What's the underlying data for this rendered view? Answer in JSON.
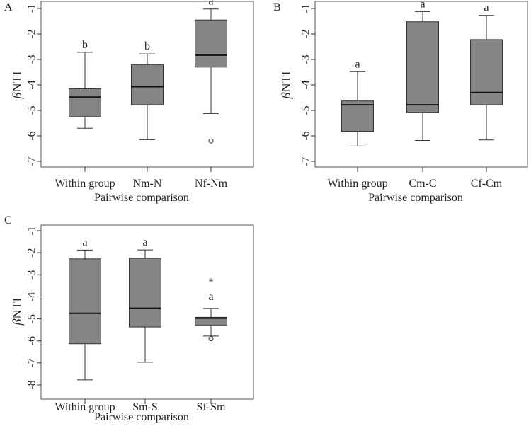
{
  "chart_data": [
    {
      "type": "boxplot",
      "panel_label": "A",
      "ylabel_symbol": "β",
      "ylabel_text": "NTI",
      "xlabel": "Pairwise comparison",
      "yticks": [
        -1,
        -2,
        -3,
        -4,
        -5,
        -6,
        -7
      ],
      "ylim": [
        -7.3,
        -0.7
      ],
      "categories": [
        {
          "label": "Within group",
          "min": -5.7,
          "q1": -5.25,
          "median": -4.48,
          "q3": -4.15,
          "max": -2.72,
          "letter": "b",
          "outliers": []
        },
        {
          "label": "Nm-N",
          "min": -6.15,
          "q1": -4.78,
          "median": -4.07,
          "q3": -3.2,
          "max": -2.78,
          "letter": "b",
          "outliers": []
        },
        {
          "label": "Nf-Nm",
          "min": -5.12,
          "q1": -3.3,
          "median": -2.83,
          "q3": -1.45,
          "max": -1.02,
          "letter": "a",
          "outliers": [
            {
              "value": -6.2,
              "marker": "○"
            }
          ]
        }
      ]
    },
    {
      "type": "boxplot",
      "panel_label": "B",
      "ylabel_symbol": "β",
      "ylabel_text": "NTI",
      "xlabel": "Pairwise comparison",
      "yticks": [
        -1,
        -2,
        -3,
        -4,
        -5,
        -6,
        -7
      ],
      "ylim": [
        -7.3,
        -0.7
      ],
      "categories": [
        {
          "label": "Within group",
          "min": -6.4,
          "q1": -5.82,
          "median": -4.78,
          "q3": -4.63,
          "max": -3.48,
          "letter": "a",
          "outliers": []
        },
        {
          "label": "Cm-C",
          "min": -6.18,
          "q1": -5.08,
          "median": -4.78,
          "q3": -1.52,
          "max": -1.12,
          "letter": "a",
          "outliers": []
        },
        {
          "label": "Cf-Cm",
          "min": -6.16,
          "q1": -4.78,
          "median": -4.3,
          "q3": -2.22,
          "max": -1.27,
          "letter": "a",
          "outliers": []
        }
      ]
    },
    {
      "type": "boxplot",
      "panel_label": "C",
      "ylabel_symbol": "β",
      "ylabel_text": "NTI",
      "xlabel": "Pairwise comparison",
      "yticks": [
        -1,
        -2,
        -3,
        -4,
        -5,
        -6,
        -7,
        -8
      ],
      "ylim": [
        -8.4,
        -0.6
      ],
      "categories": [
        {
          "label": "Within group",
          "min": -7.77,
          "q1": -6.13,
          "median": -4.75,
          "q3": -2.28,
          "max": -1.88,
          "letter": "a",
          "outliers": []
        },
        {
          "label": "Sm-S",
          "min": -6.97,
          "q1": -5.37,
          "median": -4.52,
          "q3": -2.25,
          "max": -1.87,
          "letter": "a",
          "outliers": []
        },
        {
          "label": "Sf-Sm",
          "min": -5.78,
          "q1": -5.3,
          "median": -4.97,
          "q3": -4.93,
          "max": -4.53,
          "letter": "a",
          "outliers": [
            {
              "value": -3.27,
              "marker": "*"
            },
            {
              "value": -5.9,
              "marker": "○"
            }
          ]
        }
      ]
    }
  ]
}
